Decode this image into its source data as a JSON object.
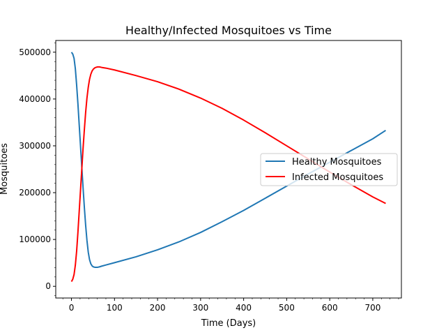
{
  "chart_data": {
    "type": "line",
    "title": "Healthy/Infected Mosquitoes vs Time",
    "xlabel": "Time (Days)",
    "ylabel": "Mosquitoes",
    "xlim": [
      -36.5,
      766.5
    ],
    "ylim": [
      -25000,
      525000
    ],
    "xticks": [
      0,
      100,
      200,
      300,
      400,
      500,
      600,
      700
    ],
    "yticks": [
      0,
      100000,
      200000,
      300000,
      400000,
      500000
    ],
    "xtick_labels": [
      "0",
      "100",
      "200",
      "300",
      "400",
      "500",
      "600",
      "700"
    ],
    "ytick_labels": [
      "0",
      "100000",
      "200000",
      "300000",
      "400000",
      "500000"
    ],
    "grid": false,
    "legend_position": "center-right",
    "series": [
      {
        "name": "Healthy Mosquitoes",
        "color": "#1f77b4",
        "x": [
          0,
          3,
          6,
          9,
          12,
          15,
          18,
          21,
          24,
          27,
          30,
          33,
          36,
          39,
          42,
          45,
          48,
          51,
          55,
          60,
          65,
          70,
          80,
          100,
          150,
          200,
          250,
          300,
          350,
          400,
          450,
          500,
          550,
          600,
          650,
          700,
          730
        ],
        "y": [
          500000,
          496000,
          487000,
          465000,
          430000,
          390000,
          345000,
          300000,
          255000,
          210000,
          168000,
          130000,
          98000,
          73000,
          57000,
          48000,
          43500,
          41500,
          40500,
          40500,
          41500,
          43000,
          45500,
          50500,
          63000,
          78000,
          95000,
          115000,
          138000,
          162000,
          188000,
          214000,
          240000,
          265000,
          290000,
          315000,
          333000
        ]
      },
      {
        "name": "Infected Mosquitoes",
        "color": "#ff0000",
        "x": [
          0,
          3,
          6,
          9,
          12,
          15,
          18,
          21,
          24,
          27,
          30,
          33,
          36,
          39,
          42,
          45,
          48,
          51,
          55,
          60,
          65,
          70,
          80,
          100,
          150,
          200,
          250,
          300,
          350,
          400,
          450,
          500,
          550,
          600,
          650,
          700,
          730
        ],
        "y": [
          10000,
          15000,
          25000,
          45000,
          75000,
          115000,
          160000,
          205000,
          250000,
          295000,
          335000,
          372000,
          402000,
          425000,
          442000,
          453000,
          460000,
          464000,
          467000,
          468500,
          468500,
          467500,
          466000,
          462000,
          450000,
          437000,
          421000,
          402000,
          380000,
          355000,
          328000,
          300000,
          272000,
          244000,
          217000,
          191000,
          177000
        ]
      }
    ]
  }
}
